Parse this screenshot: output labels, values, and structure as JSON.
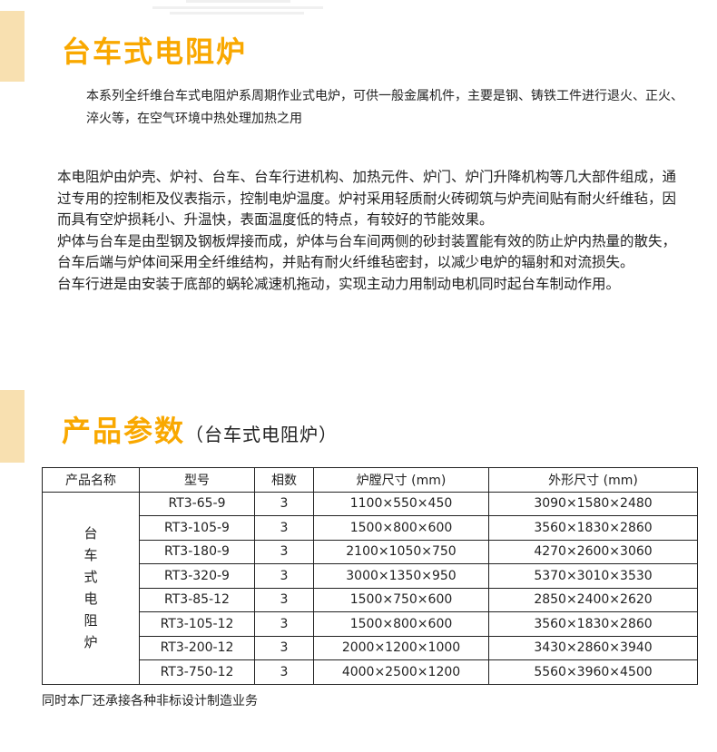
{
  "title": "台车式电阻炉",
  "intro": "本系列全纤维台车式电阻炉系周期作业式电炉，可供一般金属机件，主要是钢、铸铁工件进行退火、正火、淬火等，在空气环境中热处理加热之用",
  "paragraphs": [
    "本电阻炉由炉壳、炉衬、台车、台车行进机构、加热元件、炉门、炉门升降机构等几大部件组成，通过专用的控制柜及仪表指示，控制电炉温度。炉衬采用轻质耐火砖砌筑与炉壳间贴有耐火纤维毡，因而具有空炉损耗小、升温快，表面温度低的特点，有较好的节能效果。",
    "炉体与台车是由型钢及钢板焊接而成，炉体与台车间两侧的砂封装置能有效的防止炉内热量的散失，台车后端与炉体间采用全纤维结构，并贴有耐火纤维毡密封，以减少电炉的辐射和对流损失。",
    "台车行进是由安装于底部的蜗轮减速机拖动，实现主动力用制动电机同时起台车制动作用。"
  ],
  "params_title": "产品参数",
  "params_subtitle": "（台车式电阻炉）",
  "table": {
    "headers": [
      "产品名称",
      "型号",
      "相数",
      "炉膛尺寸 (mm)",
      "外形尺寸 (mm)"
    ],
    "product_name": "台车式电阻炉",
    "rows": [
      [
        "RT3-65-9",
        "3",
        "1100×550×450",
        "3090×1580×2480"
      ],
      [
        "RT3-105-9",
        "3",
        "1500×800×600",
        "3560×1830×2860"
      ],
      [
        "RT3-180-9",
        "3",
        "2100×1050×750",
        "4270×2600×3060"
      ],
      [
        "RT3-320-9",
        "3",
        "3000×1350×950",
        "5370×3010×3530"
      ],
      [
        "RT3-85-12",
        "3",
        "1500×750×600",
        "2850×2400×2620"
      ],
      [
        "RT3-105-12",
        "3",
        "1500×800×600",
        "3560×1830×2860"
      ],
      [
        "RT3-200-12",
        "3",
        "2000×1200×1000",
        "3430×2860×3940"
      ],
      [
        "RT3-750-12",
        "3",
        "4000×2500×1200",
        "5560×3960×4500"
      ]
    ]
  },
  "footnote": "同时本厂还承接各种非标设计制造业务",
  "colors": {
    "accent": "#f9a800",
    "tan": "#f8e0b0"
  }
}
